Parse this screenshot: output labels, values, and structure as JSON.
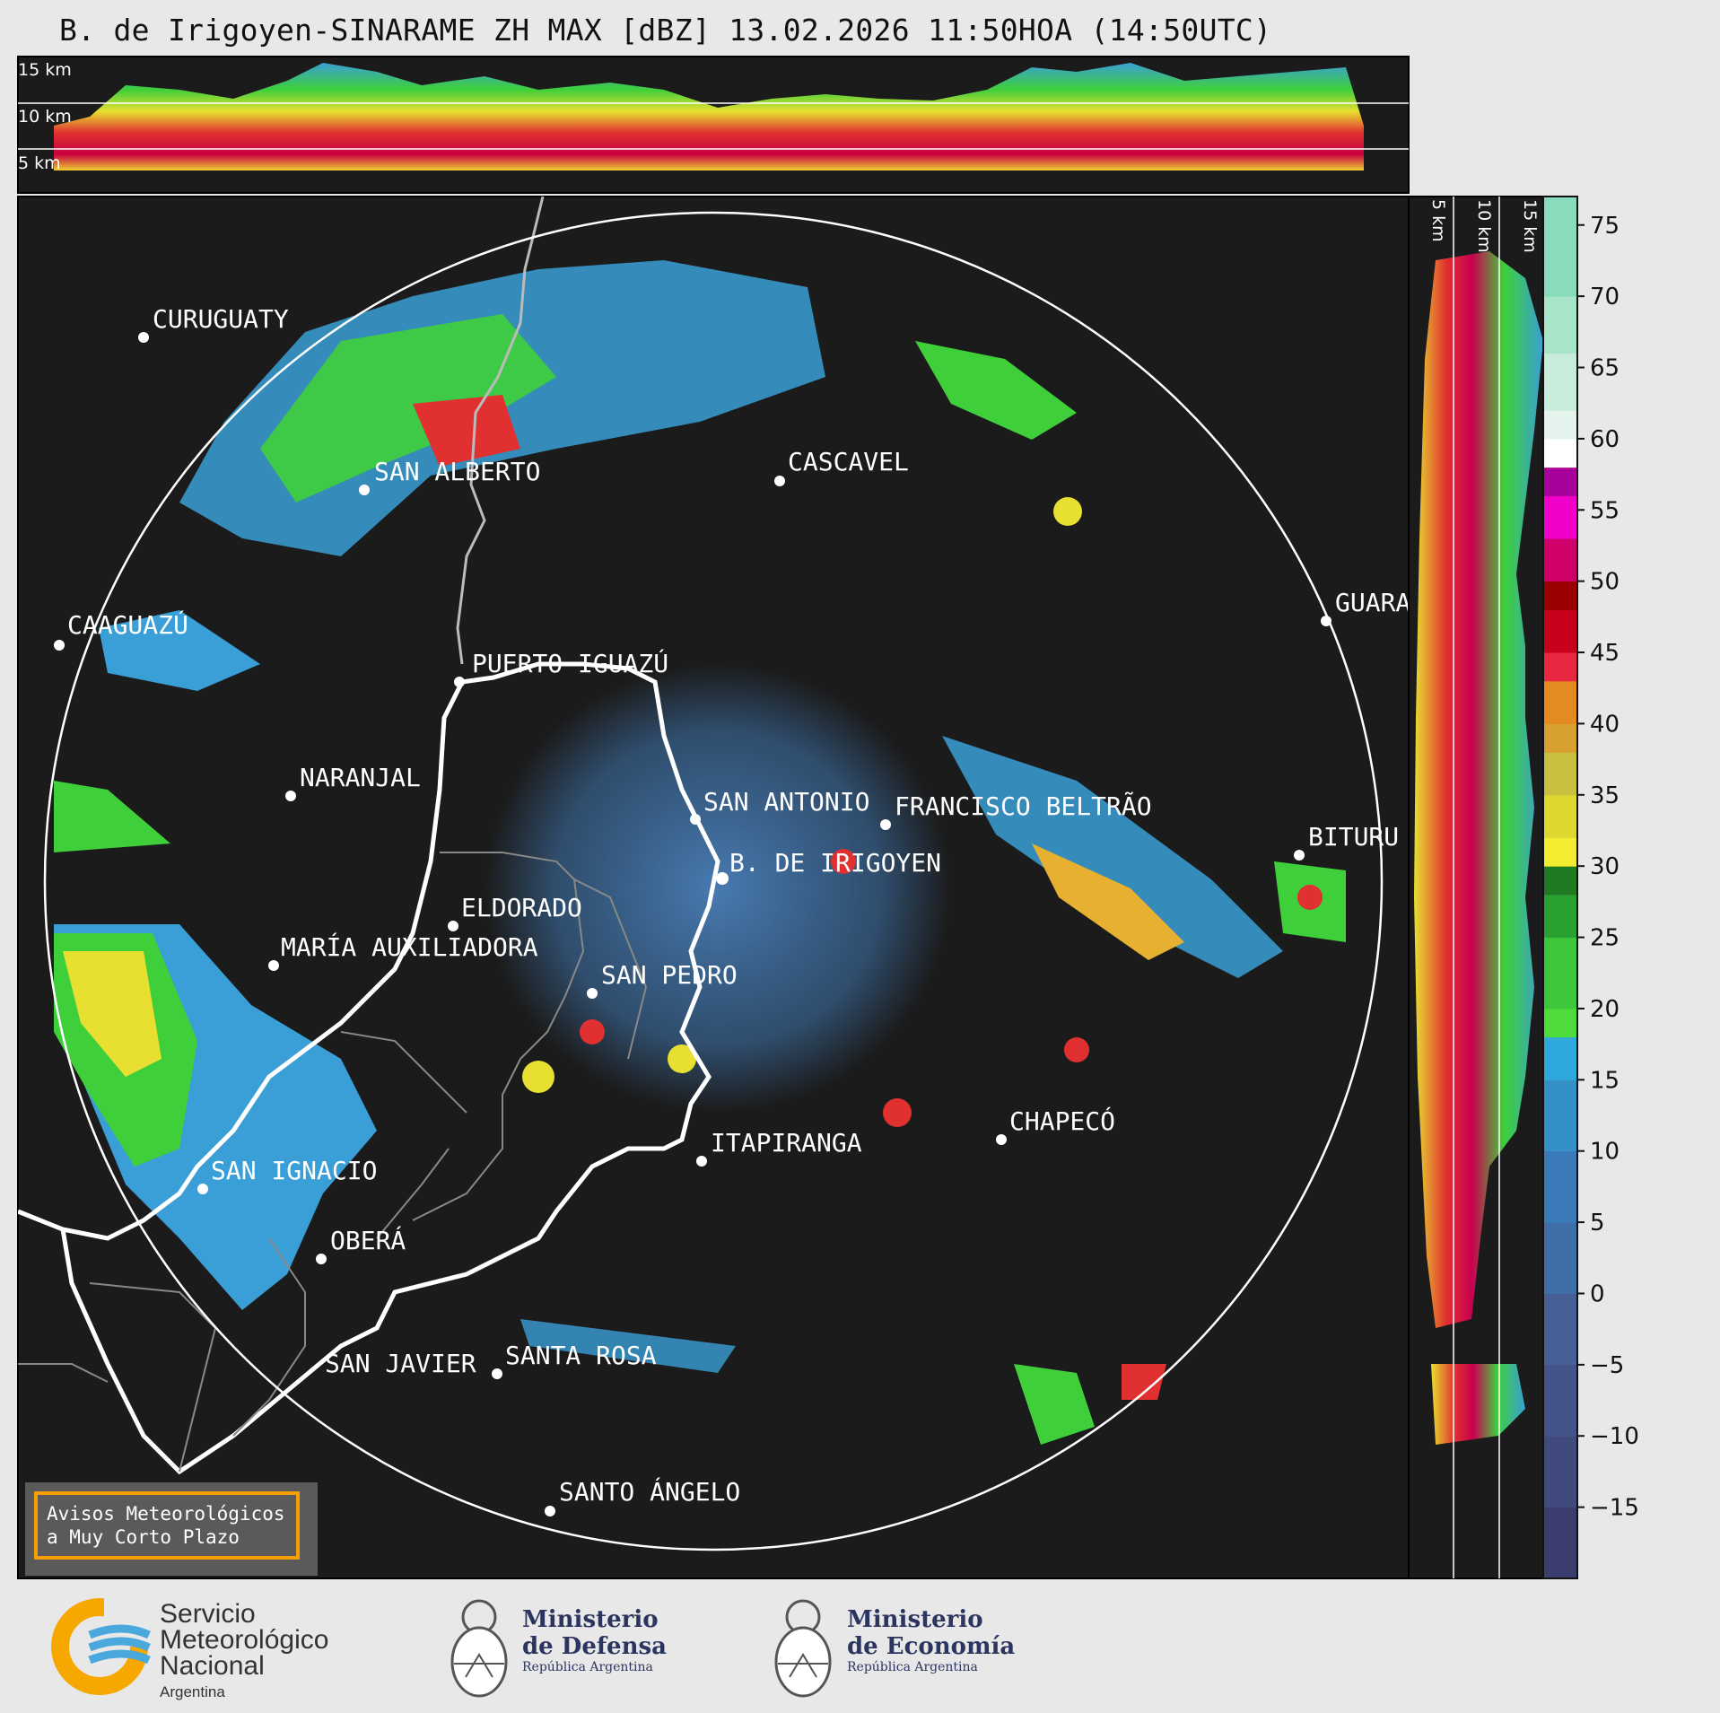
{
  "title": "B. de Irigoyen-SINARAME ZH MAX [dBZ] 13.02.2026 11:50HOA (14:50UTC)",
  "top_panel": {
    "height_labels": [
      "15 km",
      "10 km",
      "5 km"
    ]
  },
  "side_panel": {
    "height_labels": [
      "5 km",
      "10 km",
      "15 km"
    ]
  },
  "colorbar": {
    "unit": "dBZ",
    "ticks": [
      "75",
      "70",
      "65",
      "60",
      "55",
      "50",
      "45",
      "40",
      "35",
      "30",
      "25",
      "20",
      "15",
      "10",
      "5",
      "0",
      "−5",
      "−10",
      "−15"
    ]
  },
  "cities": [
    {
      "name": "CURUGUATY"
    },
    {
      "name": "SAN ALBERTO"
    },
    {
      "name": "CASCAVEL"
    },
    {
      "name": "CAAGUAZÚ"
    },
    {
      "name": "GUARA"
    },
    {
      "name": "PUERTO IGUAZÚ"
    },
    {
      "name": "NARANJAL"
    },
    {
      "name": "SAN ANTONIO"
    },
    {
      "name": "FRANCISCO BELTRÃO"
    },
    {
      "name": "BITURU"
    },
    {
      "name": "B. DE IRIGOYEN"
    },
    {
      "name": "ELDORADO"
    },
    {
      "name": "MARÍA AUXILIADORA"
    },
    {
      "name": "SAN PEDRO"
    },
    {
      "name": "CHAPECÓ"
    },
    {
      "name": "ITAPIRANGA"
    },
    {
      "name": "SAN IGNACIO"
    },
    {
      "name": "OBERÁ"
    },
    {
      "name": "SAN JAVIER"
    },
    {
      "name": "SANTA ROSA"
    },
    {
      "name": "SANTO ÁNGELO"
    }
  ],
  "aviso": {
    "line1": "Avisos Meteorológicos",
    "line2": "a Muy Corto Plazo"
  },
  "logos": {
    "smn": {
      "line1": "Servicio",
      "line2": "Meteorológico",
      "line3": "Nacional",
      "country": "Argentina"
    },
    "defensa": {
      "line1": "Ministerio",
      "line2": "de Defensa",
      "sub": "República Argentina"
    },
    "economia": {
      "line1": "Ministerio",
      "line2": "de Economía",
      "sub": "República Argentina"
    }
  },
  "colors": {
    "map_bg": "#1b1b1b",
    "page_bg": "#e8e8e8",
    "aviso_border": "#f5a000"
  }
}
